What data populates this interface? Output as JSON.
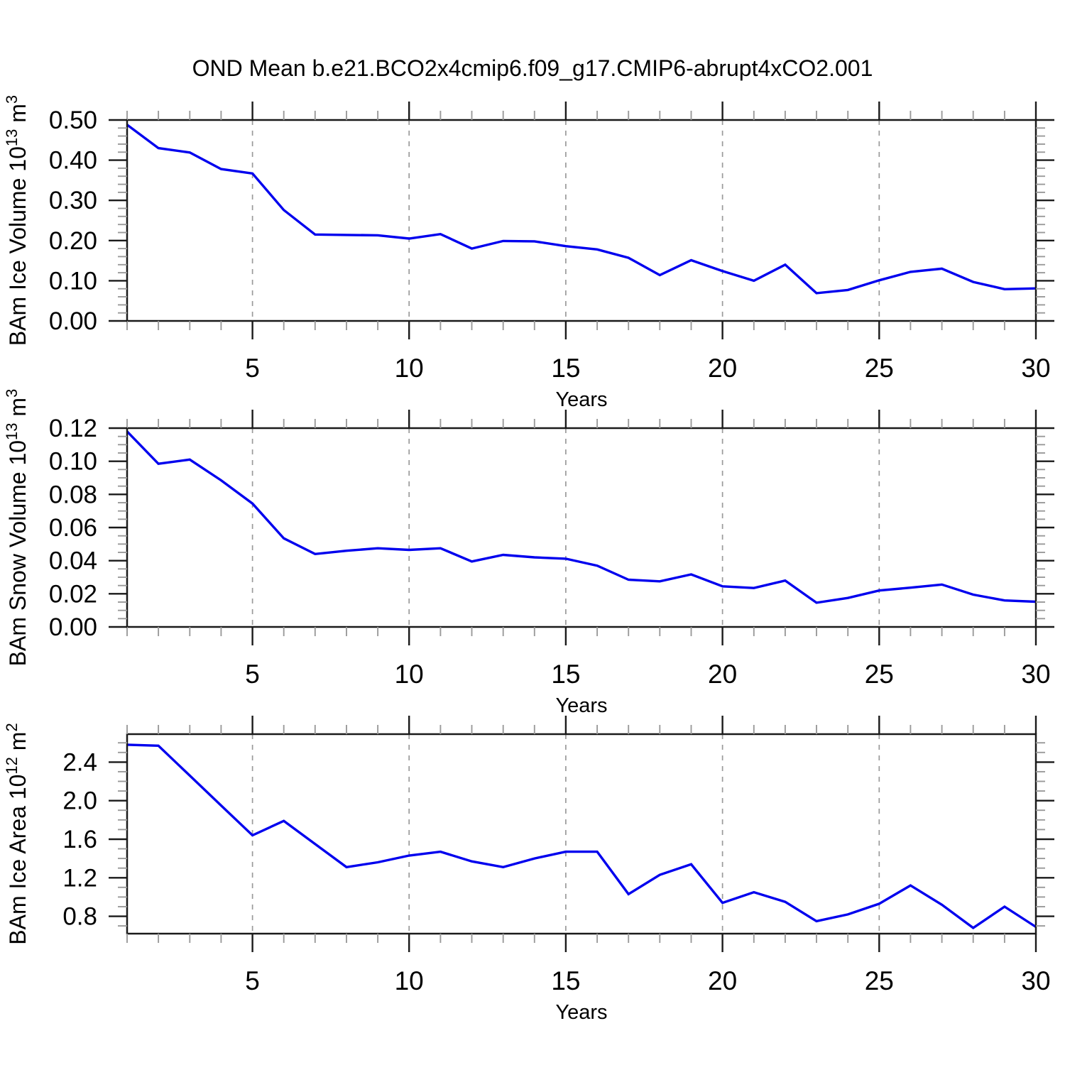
{
  "page_title": "OND Mean b.e21.BCO2x4cmip6.f09_g17.CMIP6-abrupt4xCO2.001",
  "colors": {
    "line": "#0000EE",
    "axis": "#1a1a1a",
    "grid": "#9a9a9a",
    "minor_tick": "#9a9a9a",
    "background": "#ffffff",
    "text": "#000000"
  },
  "chart_data": [
    {
      "type": "line",
      "series_key": "ice-volume",
      "title": "",
      "ylabel": "BAm Ice Volume 10^13 m^3",
      "ylabel_rich": [
        {
          "text": "BAm Ice Volume 10",
          "sup": false
        },
        {
          "text": "13",
          "sup": true
        },
        {
          "text": " m",
          "sup": false
        },
        {
          "text": "3",
          "sup": true
        }
      ],
      "xlabel": "Years",
      "x": [
        1,
        2,
        3,
        4,
        5,
        6,
        7,
        8,
        9,
        10,
        11,
        12,
        13,
        14,
        15,
        16,
        17,
        18,
        19,
        20,
        21,
        22,
        23,
        24,
        25,
        26,
        27,
        28,
        29,
        30
      ],
      "values": [
        0.488,
        0.43,
        0.419,
        0.378,
        0.367,
        0.276,
        0.215,
        0.214,
        0.213,
        0.205,
        0.216,
        0.18,
        0.199,
        0.198,
        0.186,
        0.178,
        0.157,
        0.114,
        0.151,
        0.124,
        0.1,
        0.14,
        0.069,
        0.077,
        0.101,
        0.122,
        0.13,
        0.097,
        0.079,
        0.081
      ],
      "xlim": [
        1,
        30
      ],
      "ylim": [
        0,
        0.5
      ],
      "ytick_values": [
        0,
        0.1,
        0.2,
        0.3,
        0.4,
        0.5
      ],
      "ytick_labels": [
        "0.00",
        "0.10",
        "0.20",
        "0.30",
        "0.40",
        "0.50"
      ],
      "y_minor_step": 0.02,
      "xtick_values": [
        5,
        10,
        15,
        20,
        25,
        30
      ],
      "xtick_labels": [
        "5",
        "10",
        "15",
        "20",
        "25",
        "30"
      ],
      "x_minor_step": 1,
      "grid_x": [
        5,
        10,
        15,
        20,
        25
      ],
      "grid": "vertical-dashed",
      "legend": "none"
    },
    {
      "type": "line",
      "series_key": "snow-volume",
      "title": "",
      "ylabel": "BAm Snow Volume 10^13 m^3",
      "ylabel_rich": [
        {
          "text": "BAm Snow Volume 10",
          "sup": false
        },
        {
          "text": "13",
          "sup": true
        },
        {
          "text": " m",
          "sup": false
        },
        {
          "text": "3",
          "sup": true
        }
      ],
      "xlabel": "Years",
      "x": [
        1,
        2,
        3,
        4,
        5,
        6,
        7,
        8,
        9,
        10,
        11,
        12,
        13,
        14,
        15,
        16,
        17,
        18,
        19,
        20,
        21,
        22,
        23,
        24,
        25,
        26,
        27,
        28,
        29,
        30
      ],
      "values": [
        0.118,
        0.0985,
        0.101,
        0.0885,
        0.0745,
        0.0535,
        0.044,
        0.046,
        0.0475,
        0.0465,
        0.0475,
        0.0395,
        0.0435,
        0.042,
        0.0412,
        0.037,
        0.0285,
        0.0275,
        0.0317,
        0.0245,
        0.0235,
        0.028,
        0.0146,
        0.0175,
        0.022,
        0.0237,
        0.0256,
        0.0195,
        0.016,
        0.0152
      ],
      "xlim": [
        1,
        30
      ],
      "ylim": [
        0,
        0.12
      ],
      "ytick_values": [
        0,
        0.02,
        0.04,
        0.06,
        0.08,
        0.1,
        0.12
      ],
      "ytick_labels": [
        "0.00",
        "0.02",
        "0.04",
        "0.06",
        "0.08",
        "0.10",
        "0.12"
      ],
      "y_minor_step": 0.005,
      "xtick_values": [
        5,
        10,
        15,
        20,
        25,
        30
      ],
      "xtick_labels": [
        "5",
        "10",
        "15",
        "20",
        "25",
        "30"
      ],
      "x_minor_step": 1,
      "grid_x": [
        5,
        10,
        15,
        20,
        25
      ],
      "grid": "vertical-dashed",
      "legend": "none"
    },
    {
      "type": "line",
      "series_key": "ice-area",
      "title": "",
      "ylabel": "BAm Ice Area 10^12 m^2",
      "ylabel_rich": [
        {
          "text": "BAm Ice Area 10",
          "sup": false
        },
        {
          "text": "12",
          "sup": true
        },
        {
          "text": " m",
          "sup": false
        },
        {
          "text": "2",
          "sup": true
        }
      ],
      "xlabel": "Years",
      "x": [
        1,
        2,
        3,
        4,
        5,
        6,
        7,
        8,
        9,
        10,
        11,
        12,
        13,
        14,
        15,
        16,
        17,
        18,
        19,
        20,
        21,
        22,
        23,
        24,
        25,
        26,
        27,
        28,
        29,
        30
      ],
      "values": [
        2.58,
        2.57,
        2.26,
        1.95,
        1.64,
        1.79,
        1.55,
        1.31,
        1.36,
        1.43,
        1.47,
        1.37,
        1.31,
        1.4,
        1.47,
        1.47,
        1.03,
        1.23,
        1.34,
        0.94,
        1.05,
        0.95,
        0.75,
        0.82,
        0.93,
        1.12,
        0.92,
        0.68,
        0.9,
        0.69
      ],
      "xlim": [
        1,
        30
      ],
      "ylim": [
        0.62,
        2.69
      ],
      "ytick_values": [
        0.8,
        1.2,
        1.6,
        2.0,
        2.4
      ],
      "ytick_labels": [
        "0.8",
        "1.2",
        "1.6",
        "2.0",
        "2.4"
      ],
      "y_minor_step": 0.1,
      "xtick_values": [
        5,
        10,
        15,
        20,
        25,
        30
      ],
      "xtick_labels": [
        "5",
        "10",
        "15",
        "20",
        "25",
        "30"
      ],
      "x_minor_step": 1,
      "grid_x": [
        5,
        10,
        15,
        20,
        25
      ],
      "grid": "vertical-dashed",
      "legend": "none"
    }
  ]
}
